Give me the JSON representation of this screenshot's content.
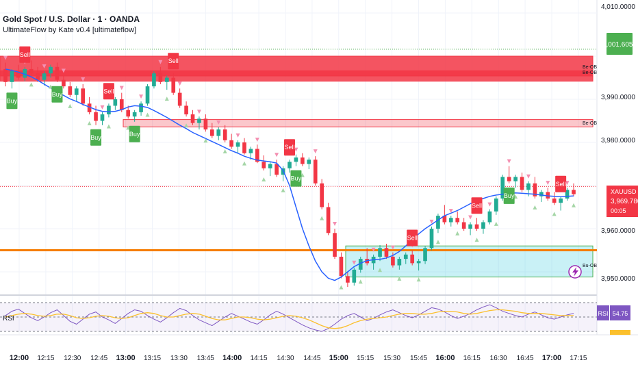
{
  "header": {
    "title": "Gold Spot / U.S. Dollar · 1 · OANDA",
    "indicator": "UltimateFlow by Kate v0.4 [ultimateflow]"
  },
  "price_axis": {
    "ticks": [
      "4,010.0000",
      "3,990.0000",
      "3,980.0000",
      "3,960.0000",
      "3,950.0000"
    ],
    "level_badge": "4,001.6050",
    "symbol": "XAUUSD",
    "last_price": "3,969.7800",
    "countdown": "00:05"
  },
  "time_axis": {
    "ticks": [
      "12:00",
      "12:15",
      "12:30",
      "12:45",
      "13:00",
      "13:15",
      "13:30",
      "13:45",
      "14:00",
      "14:15",
      "14:30",
      "14:45",
      "15:00",
      "15:15",
      "15:30",
      "15:45",
      "16:00",
      "16:15",
      "16:30",
      "16:45",
      "17:00",
      "17:15"
    ],
    "bold_ticks": [
      "12:00",
      "13:00",
      "14:00",
      "15:00",
      "16:00",
      "17:00"
    ]
  },
  "zones": {
    "top_label_1": "Be-OB",
    "top_label_2": "Be-OB",
    "mid_label": "Be-OB",
    "bull_label": "Bu-OB"
  },
  "signals": {
    "buy": "Buy",
    "sell": "Sell"
  },
  "rsi": {
    "label": "RSI",
    "badge_label": "RSI",
    "value": "54.75"
  },
  "colors": {
    "bull_candle": "#22ab94",
    "bear_candle": "#f23645",
    "ma_line": "#2962ff",
    "orange_line": "#f57c00",
    "bear_zone": "#f23645",
    "bull_zone": "#26c6da",
    "rsi_line": "#7e57c2",
    "rsi_ma": "#fbc02d"
  },
  "chart_data": {
    "type": "candlestick",
    "ylim": [
      3946,
      4012
    ],
    "candles": [
      [
        3997,
        3998.5,
        3993,
        3994
      ],
      [
        3994,
        3997,
        3992.5,
        3996.5
      ],
      [
        3996.5,
        3998,
        3994.5,
        3995
      ],
      [
        3995,
        3997.5,
        3994.2,
        3997
      ],
      [
        3997,
        3999,
        3995.5,
        3996
      ],
      [
        3996,
        3997.5,
        3994,
        3994.5
      ],
      [
        3994.5,
        3996.5,
        3993.2,
        3996
      ],
      [
        3996,
        3998,
        3995,
        3997.5
      ],
      [
        3997.5,
        3998.5,
        3994,
        3994.5
      ],
      [
        3994.5,
        3995.5,
        3992.5,
        3993
      ],
      [
        3993,
        3994,
        3990.5,
        3991
      ],
      [
        3991,
        3993,
        3989.5,
        3992.5
      ],
      [
        3992.5,
        3993.5,
        3988.5,
        3989
      ],
      [
        3989,
        3990.5,
        3986.5,
        3987
      ],
      [
        3987,
        3988.5,
        3984,
        3985
      ],
      [
        3985,
        3987,
        3984,
        3986.5
      ],
      [
        3986.5,
        3989,
        3985.8,
        3988.5
      ],
      [
        3988.5,
        3990.5,
        3987.5,
        3990
      ],
      [
        3990,
        3991.5,
        3987,
        3987.5
      ],
      [
        3987.5,
        3988.5,
        3985.5,
        3986
      ],
      [
        3986,
        3987.5,
        3984.8,
        3987
      ],
      [
        3987,
        3989.5,
        3986.2,
        3989
      ],
      [
        3989,
        3993.5,
        3988.5,
        3993
      ],
      [
        3993,
        3996.5,
        3992.5,
        3996
      ],
      [
        3996,
        3997.5,
        3993.5,
        3994
      ],
      [
        3994,
        3995.5,
        3992.2,
        3995
      ],
      [
        3995,
        3996,
        3991,
        3991.5
      ],
      [
        3991.5,
        3992.5,
        3988,
        3988.5
      ],
      [
        3988.5,
        3989.5,
        3986,
        3986.5
      ],
      [
        3986.5,
        3987.5,
        3984,
        3984.5
      ],
      [
        3984.5,
        3986,
        3983,
        3985.5
      ],
      [
        3985.5,
        3986.5,
        3982.5,
        3983
      ],
      [
        3983,
        3984.5,
        3981,
        3981.5
      ],
      [
        3981.5,
        3983.5,
        3980.5,
        3983
      ],
      [
        3983,
        3984,
        3980,
        3980.5
      ],
      [
        3980.5,
        3982,
        3978.5,
        3979
      ],
      [
        3979,
        3980.5,
        3977.5,
        3980
      ],
      [
        3980,
        3981,
        3977.2,
        3977.5
      ],
      [
        3977.5,
        3979,
        3976,
        3978.5
      ],
      [
        3978.5,
        3979.5,
        3975.2,
        3975.5
      ],
      [
        3975.5,
        3977,
        3973.5,
        3974
      ],
      [
        3974,
        3975.5,
        3972.2,
        3975
      ],
      [
        3975,
        3976,
        3972,
        3972.5
      ],
      [
        3972.5,
        3974.5,
        3971,
        3974
      ],
      [
        3974,
        3976,
        3973,
        3975.5
      ],
      [
        3975.5,
        3977.2,
        3974.5,
        3976.5
      ],
      [
        3976.5,
        3977.5,
        3974.5,
        3975
      ],
      [
        3975,
        3976.5,
        3973.8,
        3976
      ],
      [
        3976,
        3976.8,
        3970,
        3970.5
      ],
      [
        3970.5,
        3971.5,
        3964.5,
        3965
      ],
      [
        3965,
        3966,
        3958.5,
        3959
      ],
      [
        3959,
        3960,
        3953,
        3953.5
      ],
      [
        3953.5,
        3954.5,
        3948.5,
        3949
      ],
      [
        3949,
        3950,
        3946.5,
        3947.5
      ],
      [
        3947.5,
        3951,
        3946.8,
        3950.5
      ],
      [
        3950.5,
        3953.5,
        3949.8,
        3953
      ],
      [
        3953,
        3955.5,
        3951.5,
        3952
      ],
      [
        3952,
        3954,
        3950.5,
        3953.5
      ],
      [
        3953.5,
        3956.2,
        3952.5,
        3955.5
      ],
      [
        3955.5,
        3956.5,
        3953,
        3953.5
      ],
      [
        3953.5,
        3954.5,
        3951,
        3951.5
      ],
      [
        3951.5,
        3953.5,
        3950.5,
        3953
      ],
      [
        3953,
        3954.5,
        3951.8,
        3954
      ],
      [
        3954,
        3955,
        3951.5,
        3952
      ],
      [
        3952,
        3953,
        3950.3,
        3952.5
      ],
      [
        3952.5,
        3956,
        3951.8,
        3955.5
      ],
      [
        3955.5,
        3960.5,
        3955,
        3960
      ],
      [
        3960,
        3963.5,
        3959,
        3963
      ],
      [
        3963,
        3965.5,
        3961,
        3961.5
      ],
      [
        3961.5,
        3963,
        3960.5,
        3962.5
      ],
      [
        3962.5,
        3964,
        3961,
        3961.5
      ],
      [
        3961.5,
        3962.5,
        3959.5,
        3960
      ],
      [
        3960,
        3961.5,
        3958.5,
        3961
      ],
      [
        3961,
        3962.5,
        3959.5,
        3960
      ],
      [
        3960,
        3962,
        3958.8,
        3961.5
      ],
      [
        3961.5,
        3964.5,
        3961,
        3964
      ],
      [
        3964,
        3967.5,
        3963.2,
        3967
      ],
      [
        3967,
        3972.5,
        3966.5,
        3972
      ],
      [
        3972,
        3974.5,
        3970.5,
        3971
      ],
      [
        3971,
        3972.5,
        3969.5,
        3972
      ],
      [
        3972,
        3973,
        3968.5,
        3969
      ],
      [
        3969,
        3971,
        3967.5,
        3970.5
      ],
      [
        3970.5,
        3972,
        3967,
        3967.5
      ],
      [
        3967.5,
        3969,
        3966.2,
        3968.5
      ],
      [
        3968.5,
        3969.5,
        3966.5,
        3967
      ],
      [
        3967,
        3968.5,
        3965.5,
        3966
      ],
      [
        3966,
        3967.5,
        3964.2,
        3967
      ],
      [
        3967,
        3969.5,
        3966.5,
        3969
      ],
      [
        3969,
        3970.5,
        3967.5,
        3968
      ]
    ],
    "ma": [
      3997,
      3996.7,
      3996.3,
      3995.8,
      3995.2,
      3994.4,
      3993.5,
      3992.6,
      3991.7,
      3990.9,
      3990.1,
      3989.5,
      3988.8,
      3988.2,
      3987.6,
      3987.2,
      3987.1,
      3987.2,
      3987.6,
      3988.2,
      3988.5,
      3988.4,
      3988.1,
      3987.4,
      3986.6,
      3985.8,
      3984.9,
      3984,
      3983.2,
      3982.3,
      3981.6,
      3980.9,
      3980.2,
      3979.5,
      3978.8,
      3978.1,
      3977.5,
      3976.8,
      3976.3,
      3975.9,
      3975.7,
      3975.5,
      3975.2,
      3973.5,
      3970,
      3965,
      3960,
      3956,
      3952.5,
      3950,
      3948.5,
      3948,
      3948.8,
      3950,
      3951.2,
      3952,
      3952.6,
      3952.8,
      3952.9,
      3953.2,
      3953.8,
      3954.7,
      3956,
      3957.5,
      3958.8,
      3960,
      3961,
      3962,
      3963,
      3963.6,
      3964.2,
      3965,
      3965.8,
      3966.5,
      3967,
      3967.5,
      3967.8,
      3968,
      3968.2,
      3968.3,
      3968.2,
      3968.1,
      3968,
      3967.8,
      3967.6,
      3967.5,
      3967.4,
      3967.5,
      3967.6
    ],
    "bear_zones": [
      {
        "top": 4000.0,
        "bottom": 3995.4
      },
      {
        "top": 3996.6,
        "bottom": 3994.2
      },
      {
        "top": 3985.3,
        "bottom": 3983.6
      }
    ],
    "bull_zone": {
      "top": 3956.0,
      "bottom": 3948.8
    },
    "orange_level": 3955.0,
    "dotted_levels": [
      4001.6,
      3969.78
    ],
    "rsi_series": [
      52,
      58,
      61,
      55,
      49,
      45,
      50,
      56,
      60,
      52,
      44,
      40,
      47,
      54,
      57,
      50,
      46,
      41,
      48,
      55,
      60,
      58,
      52,
      47,
      43,
      49,
      56,
      62,
      59,
      52,
      46,
      42,
      38,
      44,
      50,
      55,
      51,
      47,
      43,
      40,
      46,
      53,
      58,
      54,
      49,
      44,
      39,
      35,
      32,
      30,
      34,
      40,
      47,
      52,
      55,
      50,
      45,
      48,
      53,
      57,
      60,
      56,
      52,
      49,
      53,
      58,
      63,
      61,
      57,
      52,
      48,
      51,
      55,
      60,
      64,
      67,
      63,
      58,
      55,
      52,
      50,
      54,
      57,
      53,
      49,
      47,
      50,
      53,
      55
    ],
    "rsi_ma": [
      50,
      52,
      54,
      55,
      54,
      52,
      51,
      52,
      54,
      54,
      52,
      49,
      48,
      49,
      51,
      52,
      51,
      49,
      48,
      49,
      52,
      55,
      56,
      55,
      52,
      50,
      50,
      52,
      54,
      55,
      54,
      51,
      48,
      46,
      46,
      48,
      50,
      50,
      49,
      47,
      46,
      47,
      49,
      51,
      52,
      51,
      49,
      46,
      42,
      38,
      35,
      34,
      35,
      38,
      42,
      45,
      47,
      48,
      49,
      50,
      52,
      54,
      55,
      55,
      54,
      54,
      55,
      57,
      58,
      58,
      57,
      55,
      54,
      55,
      57,
      59,
      60,
      60,
      59,
      58,
      56,
      55,
      55,
      55,
      54,
      53,
      52,
      52,
      52
    ],
    "rsi_levels": [
      70,
      50,
      30
    ]
  }
}
